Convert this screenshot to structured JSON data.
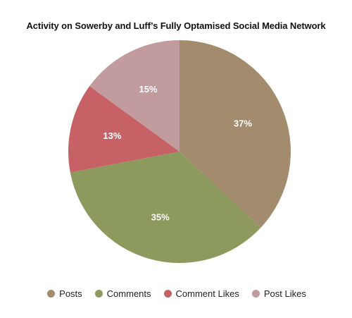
{
  "chart_data": {
    "type": "pie",
    "title": "Activity on Sowerby and Luff’s Fully Optamised Social Media Network",
    "legend_position": "bottom",
    "slices": [
      {
        "name": "Posts",
        "value": 37,
        "label": "37%",
        "color": "#a38b6d"
      },
      {
        "name": "Comments",
        "value": 35,
        "label": "35%",
        "color": "#8d9a5e"
      },
      {
        "name": "Comment Likes",
        "value": 13,
        "label": "13%",
        "color": "#c66266"
      },
      {
        "name": "Post Likes",
        "value": 15,
        "label": "15%",
        "color": "#c29b9e"
      }
    ]
  }
}
